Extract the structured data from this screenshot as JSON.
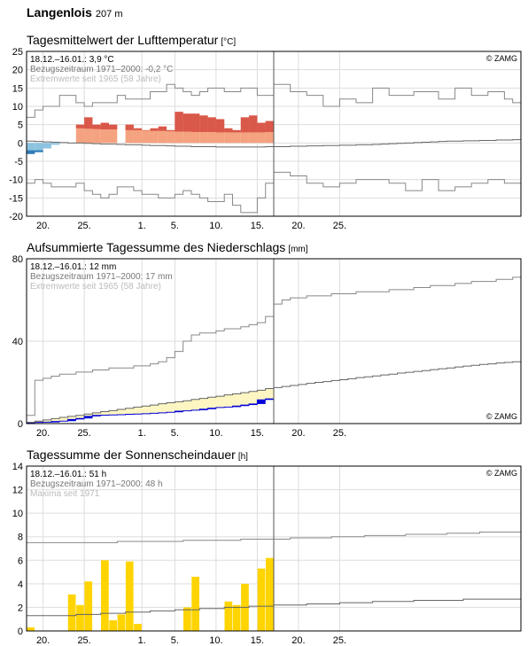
{
  "station": {
    "name": "Langenlois",
    "altitude": "207 m"
  },
  "x_axis": {
    "tick_labels": [
      "20.",
      "25.",
      "1.",
      "5.",
      "10.",
      "15.",
      "20.",
      "25."
    ]
  },
  "colors": {
    "obs_warm": "#f4a27f",
    "anom_warm": "#d9584a",
    "obs_cold": "#8cc3e0",
    "anom_cold": "#2e7bb6",
    "precip_fill": "#fdf6c2",
    "precip_cum": "#0000d9",
    "sun": "#ffd400",
    "grid": "#dddddd",
    "line": "#666666"
  },
  "chart_data": [
    {
      "type": "bar",
      "title": "Tagesmittelwert der Lufttemperatur",
      "unit": "[°C]",
      "info": {
        "period": "18.12.–16.01.: 3,9 °C",
        "reference": "Bezugszeitraum 1971–2000: -0,2 °C",
        "extremes": "Extremwerte seit 1965 (58 Jahre)",
        "source": "© ZAMG"
      },
      "ylim": [
        -20,
        25
      ],
      "yticks": [
        25,
        20,
        15,
        10,
        5,
        0,
        -5,
        -10,
        -15,
        -20
      ],
      "observed": [
        -3,
        -2.5,
        -1.5,
        -0.5,
        0,
        0,
        5,
        7,
        5,
        5.5,
        5,
        0,
        5,
        4,
        3.5,
        4,
        4.5,
        3.5,
        8.5,
        8,
        8,
        7.5,
        7,
        6.5,
        4,
        3.5,
        7,
        7.5,
        5.5,
        6
      ],
      "reference_mean": [
        0.5,
        0.4,
        0.3,
        0.2,
        0.1,
        0,
        0,
        -0.1,
        -0.2,
        -0.3,
        -0.3,
        -0.4,
        -0.5,
        -0.5,
        -0.6,
        -0.7,
        -0.7,
        -0.8,
        -0.9,
        -0.9,
        -1,
        -1,
        -1,
        -1.1,
        -1.1,
        -1.1,
        -1.1,
        -1.1,
        -1.1,
        -1,
        -1,
        -1,
        -0.9,
        -0.9,
        -0.8,
        -0.8,
        -0.7,
        -0.7,
        -0.6,
        -0.6,
        -0.5,
        -0.5,
        -0.4,
        -0.3,
        -0.2,
        -0.1,
        0,
        0.1,
        0.2,
        0.3,
        0.4,
        0.5,
        0.5,
        0.6,
        0.6,
        0.7,
        0.7,
        0.8,
        0.8,
        0.9
      ],
      "max_extreme": [
        7,
        9,
        10,
        10,
        13,
        13,
        11,
        10,
        11,
        11,
        11,
        13,
        12,
        12,
        12,
        14,
        14,
        16,
        15,
        14,
        13,
        14,
        15,
        15,
        14,
        14,
        15,
        15,
        13,
        13,
        16,
        16,
        14,
        14,
        13,
        13,
        10,
        10,
        12,
        12,
        11,
        11,
        15,
        15,
        13,
        13,
        13,
        14,
        14,
        14,
        12,
        12,
        15,
        15,
        13,
        13,
        14,
        14,
        12,
        11
      ],
      "min_extreme": [
        -11,
        -10,
        -11,
        -12,
        -12,
        -12,
        -11,
        -13,
        -14,
        -15,
        -14,
        -12,
        -12,
        -13,
        -14,
        -14,
        -15,
        -15,
        -14,
        -13,
        -14,
        -15,
        -16,
        -16,
        -14,
        -17,
        -19,
        -19,
        -15,
        -11,
        -8,
        -8,
        -9,
        -9,
        -11,
        -11,
        -12,
        -12,
        -11,
        -11,
        -10,
        -10,
        -10,
        -10,
        -11,
        -11,
        -13,
        -13,
        -10,
        -10,
        -13,
        -13,
        -12,
        -12,
        -11,
        -11,
        -10,
        -10,
        -11,
        -11
      ]
    },
    {
      "type": "area",
      "title": "Aufsummierte Tagessumme des Niederschlags",
      "unit": "[mm]",
      "info": {
        "period": "18.12.–16.01.: 12 mm",
        "reference": "Bezugszeitraum 1971–2000: 17 mm",
        "extremes": "Extremwerte seit 1965 (58 Jahre)",
        "source": "© ZAMG"
      },
      "ylim": [
        0,
        80
      ],
      "yticks": [
        80,
        40,
        0
      ],
      "observed_cumulative": [
        0.5,
        0.6,
        0.7,
        1.0,
        1.2,
        2.0,
        2.5,
        3.5,
        4.0,
        4.1,
        4.2,
        4.3,
        4.5,
        4.6,
        4.8,
        5.0,
        5.2,
        5.5,
        6.0,
        6.2,
        6.5,
        7.0,
        7.5,
        7.8,
        8.0,
        8.5,
        9.0,
        9.5,
        11.5,
        12.0
      ],
      "reference_cumulative": [
        0.6,
        1.2,
        1.8,
        2.4,
        3.0,
        3.5,
        4.0,
        4.6,
        5.2,
        5.8,
        6.3,
        6.9,
        7.4,
        8.0,
        8.5,
        9.0,
        9.6,
        10.1,
        10.6,
        11.1,
        11.7,
        12.2,
        12.8,
        13.3,
        13.9,
        14.4,
        15.0,
        15.6,
        16.2,
        17.0,
        17.5,
        18.0,
        18.5,
        19.0,
        19.5,
        20.0,
        20.4,
        20.9,
        21.3,
        21.8,
        22.3,
        22.7,
        23.1,
        23.6,
        24.0,
        24.5,
        24.9,
        25.3,
        25.7,
        26.2,
        26.6,
        27.0,
        27.5,
        27.9,
        28.3,
        28.7,
        29.0,
        29.4,
        29.7,
        30.0
      ],
      "max_extreme_cumulative": [
        4,
        21,
        22,
        23,
        24,
        24,
        25,
        25,
        26,
        26,
        27,
        27,
        27,
        28,
        28,
        29,
        30,
        32,
        35,
        40,
        43,
        44,
        44,
        45,
        46,
        46,
        47,
        48,
        49,
        52,
        58,
        60,
        61,
        61,
        62,
        62,
        62,
        63,
        63,
        63,
        64,
        64,
        64,
        64,
        65,
        65,
        65,
        66,
        66,
        67,
        67,
        67,
        68,
        68,
        69,
        69,
        69,
        70,
        70,
        71
      ],
      "min_extreme_cumulative": [
        0,
        0,
        0,
        0,
        0,
        0,
        0,
        0,
        0,
        0,
        0,
        0,
        0,
        0,
        0,
        0,
        0,
        0,
        0,
        0,
        0,
        0,
        0,
        0,
        0,
        0,
        0,
        0,
        0,
        0,
        0,
        0,
        0,
        0,
        0,
        0,
        0,
        0,
        0,
        0,
        0,
        0,
        0,
        0,
        0,
        0,
        0,
        0,
        0,
        0,
        0,
        0,
        0,
        0,
        0,
        0,
        0,
        0,
        0,
        0
      ]
    },
    {
      "type": "bar",
      "title": "Tagessumme der Sonnenscheindauer",
      "unit": "[h]",
      "info": {
        "period": "18.12.–16.01.: 51 h",
        "reference": "Bezugszeitraum 1971–2000: 48 h",
        "extremes": "Maxima seit 1971",
        "source": "© ZAMG"
      },
      "ylim": [
        0,
        14
      ],
      "yticks": [
        14,
        12,
        10,
        8,
        6,
        4,
        2,
        0
      ],
      "observed": [
        0.3,
        0,
        0,
        0,
        0,
        3.1,
        2.2,
        4.2,
        0,
        6.0,
        0.9,
        1.4,
        5.9,
        0.6,
        0,
        0,
        0,
        0,
        0,
        2.0,
        4.6,
        0,
        0,
        0,
        2.5,
        2.2,
        4.0,
        0,
        5.3,
        6.2
      ],
      "reference_cumulative": [
        1.3,
        1.3,
        1.3,
        1.3,
        1.3,
        1.3,
        1.4,
        1.4,
        1.4,
        1.5,
        1.5,
        1.5,
        1.6,
        1.6,
        1.6,
        1.7,
        1.7,
        1.7,
        1.8,
        1.8,
        1.8,
        1.9,
        1.9,
        1.9,
        2.0,
        2.0,
        2.0,
        2.1,
        2.1,
        2.1,
        2.2,
        2.2,
        2.2,
        2.2,
        2.3,
        2.3,
        2.3,
        2.3,
        2.4,
        2.4,
        2.4,
        2.4,
        2.5,
        2.5,
        2.5,
        2.5,
        2.5,
        2.6,
        2.6,
        2.6,
        2.6,
        2.6,
        2.6,
        2.7,
        2.7,
        2.7,
        2.7,
        2.7,
        2.7,
        2.7
      ],
      "max_cumulative": [
        7.5,
        7.5,
        7.5,
        7.5,
        7.5,
        7.5,
        7.5,
        7.5,
        7.5,
        7.5,
        7.5,
        7.6,
        7.6,
        7.6,
        7.6,
        7.6,
        7.6,
        7.6,
        7.6,
        7.7,
        7.7,
        7.7,
        7.7,
        7.7,
        7.7,
        7.7,
        7.8,
        7.8,
        7.8,
        7.8,
        7.8,
        7.8,
        7.9,
        7.9,
        7.9,
        7.9,
        7.9,
        8.0,
        8.0,
        8.0,
        8.0,
        8.1,
        8.1,
        8.1,
        8.1,
        8.1,
        8.2,
        8.2,
        8.2,
        8.2,
        8.2,
        8.3,
        8.3,
        8.3,
        8.3,
        8.4,
        8.4,
        8.4,
        8.4,
        8.4
      ]
    }
  ]
}
